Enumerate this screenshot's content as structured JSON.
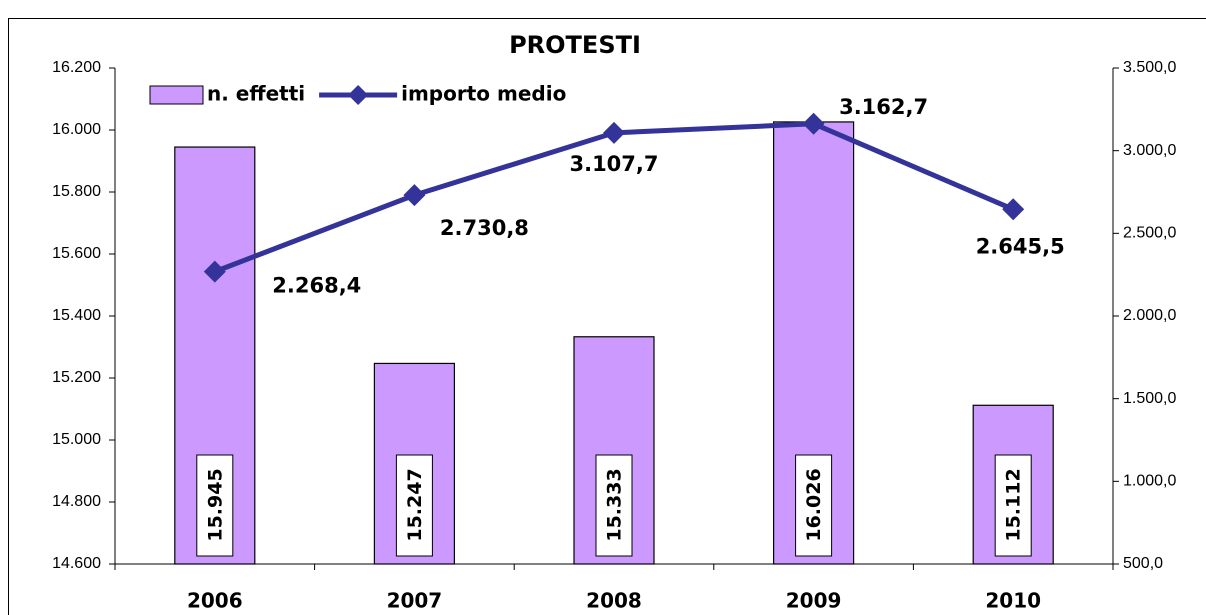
{
  "chart_data": {
    "type": "combo",
    "title": "PROTESTI",
    "categories": [
      "2006",
      "2007",
      "2008",
      "2009",
      "2010"
    ],
    "series": [
      {
        "name": "n. effetti",
        "type": "bar",
        "color": "#cc99ff",
        "axis": "y",
        "values": [
          15945,
          15247,
          15333,
          16026,
          15112
        ],
        "value_labels": [
          "15.945",
          "15.247",
          "15.333",
          "16.026",
          "15.112"
        ]
      },
      {
        "name": "importo medio",
        "type": "line",
        "color": "#333399",
        "axis": "y2",
        "values": [
          2268.4,
          2730.8,
          3107.7,
          3162.7,
          2645.5
        ],
        "value_labels": [
          "2.268,4",
          "2.730,8",
          "3.107,7",
          "3.162,7",
          "2.645,5"
        ]
      }
    ],
    "ylim": [
      14600,
      16200
    ],
    "yticks": [
      {
        "value": 14600,
        "label": "14.600"
      },
      {
        "value": 14800,
        "label": "14.800"
      },
      {
        "value": 15000,
        "label": "15.000"
      },
      {
        "value": 15200,
        "label": "15.200"
      },
      {
        "value": 15400,
        "label": "15.400"
      },
      {
        "value": 15600,
        "label": "15.600"
      },
      {
        "value": 15800,
        "label": "15.800"
      },
      {
        "value": 16000,
        "label": "16.000"
      },
      {
        "value": 16200,
        "label": "16.200"
      }
    ],
    "y2lim": [
      500,
      3500
    ],
    "y2ticks": [
      {
        "value": 500,
        "label": "500,0"
      },
      {
        "value": 1000,
        "label": "1.000,0"
      },
      {
        "value": 1500,
        "label": "1.500,0"
      },
      {
        "value": 2000,
        "label": "2.000,0"
      },
      {
        "value": 2500,
        "label": "2.500,0"
      },
      {
        "value": 3000,
        "label": "3.000,0"
      },
      {
        "value": 3500,
        "label": "3.500,0"
      }
    ],
    "legend": "top-left",
    "grid": false
  }
}
